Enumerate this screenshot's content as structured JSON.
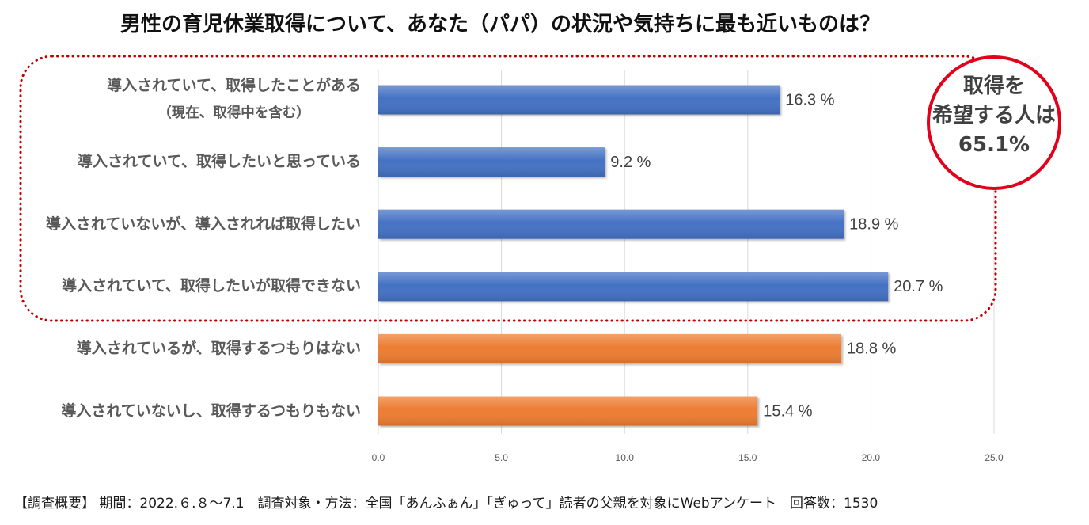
{
  "chart_data": {
    "type": "bar",
    "title": "男性の育児休業取得について、あなた（パパ）の状況や気持ちに最も近いものは？",
    "categories": [
      "導入されていて、取得したことがある",
      "導入されていて、取得したいと思っている",
      "導入されていないが、導入されれば取得したい",
      "導入されていて、取得したいが取得できない",
      "導入されているが、取得するつもりはない",
      "導入されていないし、取得するつもりもない"
    ],
    "category_notes": [
      "（現在、取得中を含む）",
      "",
      "",
      "",
      "",
      ""
    ],
    "values": [
      16.3,
      9.2,
      18.9,
      20.7,
      18.8,
      15.4
    ],
    "value_labels": [
      "16.3 %",
      "9.2 %",
      "18.9 %",
      "20.7 %",
      "18.8 %",
      "15.4 %"
    ],
    "colors": [
      "#4472C4",
      "#4472C4",
      "#4472C4",
      "#4472C4",
      "#ED7D31",
      "#ED7D31"
    ],
    "xlabel": "",
    "ylabel": "",
    "xlim": [
      0,
      25
    ],
    "xticks": [
      0,
      5,
      10,
      15,
      20,
      25
    ],
    "xtick_labels": [
      "0.0",
      "5.0",
      "10.0",
      "15.0",
      "20.0",
      "25.0"
    ],
    "grid": true,
    "highlight_group": {
      "member_indices": [
        0,
        1,
        2,
        3
      ],
      "outline_color": "#C00000"
    }
  },
  "callout": {
    "lines": [
      "取得を",
      "希望する人は",
      "65.1%"
    ],
    "border_color": "#E3001B"
  },
  "footer": "【調査概要】 期間：2022.６.８～7.1　調査対象・方法：全国「あんふぁん」「ぎゅって」読者の父親を対象にWebアンケート　回答数：1530"
}
